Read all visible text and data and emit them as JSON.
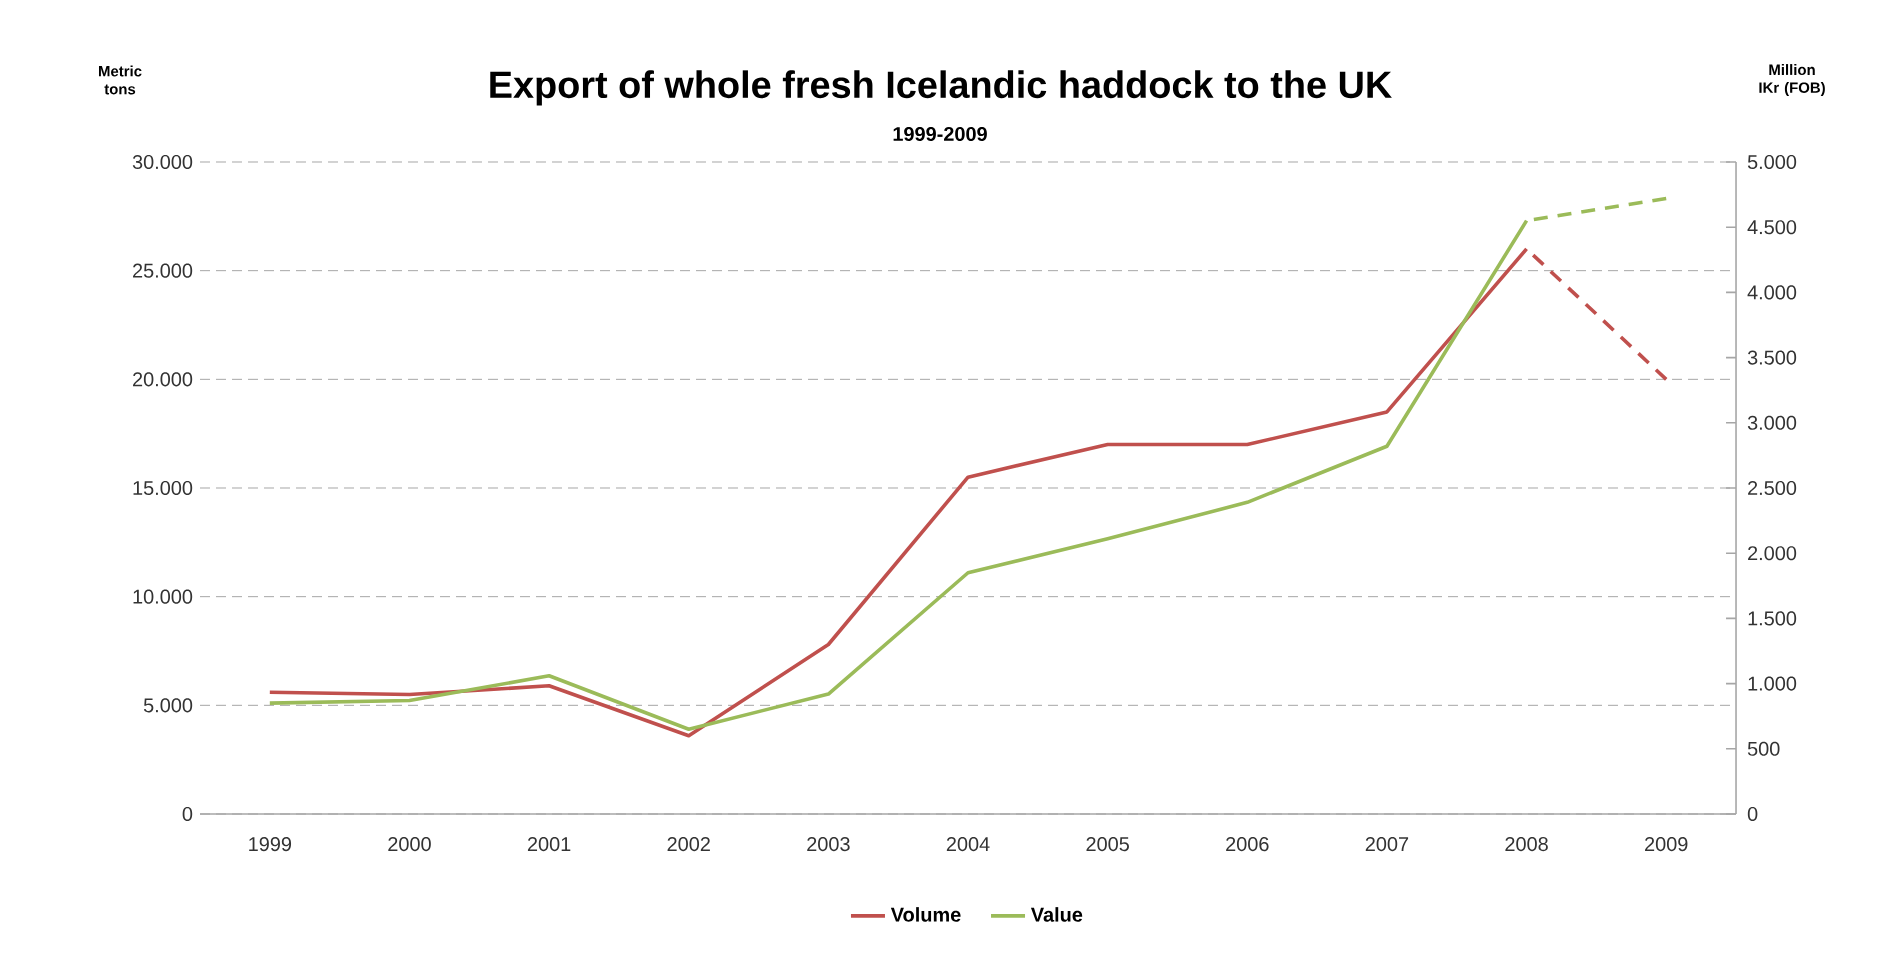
{
  "chart_data": {
    "type": "line",
    "title": "Export of whole fresh Icelandic haddock to the UK",
    "subtitle": "1999-2009",
    "ylabel": "Metric tons",
    "y2label": "Million IKr (FOB)",
    "categories": [
      "1999",
      "2000",
      "2001",
      "2002",
      "2003",
      "2004",
      "2005",
      "2006",
      "2007",
      "2008",
      "2009"
    ],
    "series": [
      {
        "name": "Volume",
        "color": "#c0504d",
        "line_style": "solid",
        "values": [
          5600,
          5500,
          5900,
          3600,
          7800,
          15500,
          17000,
          17000,
          18500,
          26000,
          null
        ]
      },
      {
        "color": "#c0504d",
        "line_style": "dashed",
        "values": [
          null,
          null,
          null,
          null,
          null,
          null,
          null,
          null,
          null,
          26000,
          20000
        ]
      },
      {
        "name": "Value",
        "color": "#9bbb59",
        "line_style": "solid",
        "axis": "y2",
        "values": [
          850,
          870,
          1060,
          650,
          920,
          1850,
          2110,
          2390,
          2820,
          4550,
          null
        ]
      },
      {
        "color": "#9bbb59",
        "line_style": "dashed",
        "axis": "y2",
        "values": [
          null,
          null,
          null,
          null,
          null,
          null,
          null,
          null,
          null,
          4550,
          4720
        ]
      }
    ],
    "ylim": [
      0,
      30000
    ],
    "yticks": [
      0,
      {
        "value": 5000,
        "label": "5.000"
      },
      {
        "value": 10000,
        "label": "10.000"
      },
      {
        "value": 15000,
        "label": "15.000"
      },
      {
        "value": 20000,
        "label": "20.000"
      },
      {
        "value": 25000,
        "label": "25.000"
      },
      {
        "value": 30000,
        "label": "30.000"
      }
    ],
    "y2lim": [
      0,
      5000
    ],
    "y2ticks": [
      0,
      500,
      {
        "value": 1000,
        "label": "1.000"
      },
      {
        "value": 1500,
        "label": "1.500"
      },
      {
        "value": 2000,
        "label": "2.000"
      },
      {
        "value": 2500,
        "label": "2.500"
      },
      {
        "value": 3000,
        "label": "3.000"
      },
      {
        "value": 3500,
        "label": "3.500"
      },
      {
        "value": 4000,
        "label": "4.000"
      },
      {
        "value": 4500,
        "label": "4.500"
      },
      {
        "value": 5000,
        "label": "5.000"
      }
    ],
    "grid": "y",
    "legend": "bottom",
    "marker": "none"
  }
}
